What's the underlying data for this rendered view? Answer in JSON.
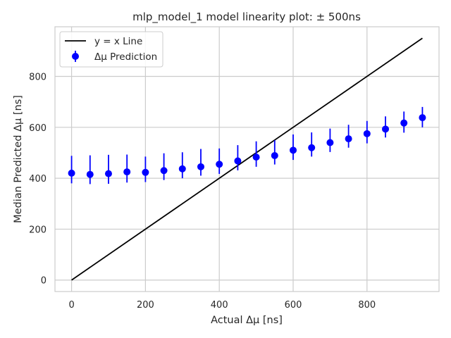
{
  "chart_data": {
    "type": "scatter",
    "title": "mlp_model_1 model linearity plot: ± 500ns",
    "xlabel": "Actual Δμ [ns]",
    "ylabel": "Median Predicted Δμ [ns]",
    "xlim": [
      -45,
      995
    ],
    "ylim": [
      -45,
      995
    ],
    "xticks": [
      0,
      200,
      400,
      600,
      800
    ],
    "yticks": [
      0,
      200,
      400,
      600,
      800
    ],
    "grid": true,
    "legend_position": "top-left",
    "series": [
      {
        "name": "y = x Line",
        "kind": "line",
        "color": "#000000",
        "x": [
          0,
          950
        ],
        "y": [
          0,
          950
        ]
      },
      {
        "name": "Δμ Prediction",
        "kind": "errorbar",
        "color": "#0000ff",
        "x": [
          0,
          50,
          100,
          150,
          200,
          250,
          300,
          350,
          400,
          450,
          500,
          550,
          600,
          650,
          700,
          750,
          800,
          850,
          900,
          950
        ],
        "y": [
          420,
          415,
          418,
          425,
          423,
          430,
          437,
          445,
          455,
          468,
          483,
          489,
          510,
          520,
          540,
          555,
          575,
          593,
          617,
          638
        ],
        "yerr_low": [
          40,
          38,
          40,
          42,
          38,
          37,
          37,
          35,
          38,
          37,
          38,
          35,
          38,
          35,
          37,
          35,
          38,
          33,
          38,
          38
        ],
        "yerr_high": [
          68,
          75,
          74,
          68,
          62,
          68,
          65,
          70,
          62,
          62,
          62,
          60,
          62,
          60,
          55,
          55,
          50,
          50,
          45,
          42
        ]
      }
    ]
  }
}
